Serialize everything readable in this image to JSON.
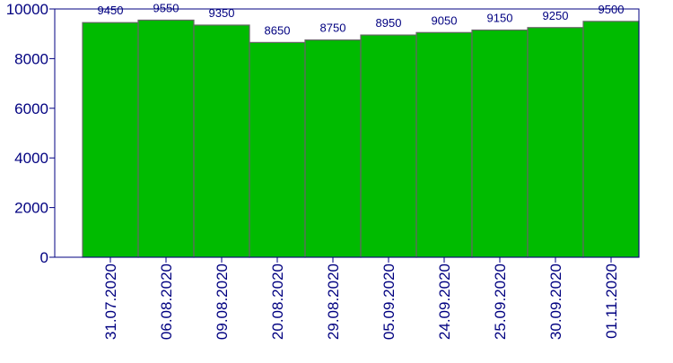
{
  "chart_data": {
    "type": "bar",
    "title": "",
    "xlabel": "",
    "ylabel": "",
    "categories": [
      "31.07.2020",
      "06.08.2020",
      "09.08.2020",
      "20.08.2020",
      "29.08.2020",
      "05.09.2020",
      "24.09.2020",
      "25.09.2020",
      "30.09.2020",
      "01.11.2020"
    ],
    "values": [
      9450,
      9550,
      9350,
      8650,
      8750,
      8950,
      9050,
      9150,
      9250,
      9500
    ],
    "data_labels": [
      "9450",
      "9550",
      "9350",
      "8650",
      "8750",
      "8950",
      "9050",
      "9150",
      "9250",
      "9500"
    ],
    "ylim": [
      0,
      10000
    ],
    "yticks": [
      0,
      2000,
      4000,
      6000,
      8000,
      10000
    ],
    "ytick_labels": [
      "0",
      "2000",
      "4000",
      "6000",
      "8000",
      "10000"
    ],
    "grid": false,
    "legend": "none",
    "colors": {
      "bar_fill": "#00bb00",
      "bar_stroke": "#666666",
      "axis": "#000080",
      "text": "#000080",
      "background": "#ffffff"
    }
  }
}
